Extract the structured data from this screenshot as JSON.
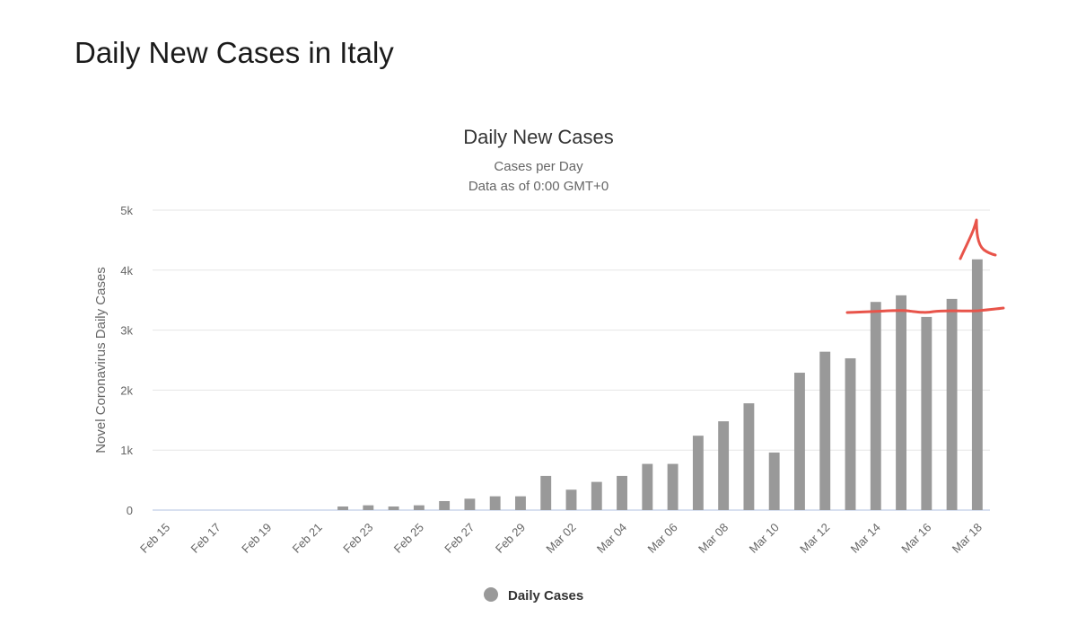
{
  "page": {
    "title": "Daily New Cases in Italy"
  },
  "colors": {
    "bar": "#999999",
    "grid": "#e6e6e6",
    "baseline": "#ccd6eb",
    "annotation": "#e8544a"
  },
  "chart_data": {
    "type": "bar",
    "title": "Daily New Cases",
    "subtitle": [
      "Cases per Day",
      "Data as of 0:00 GMT+0"
    ],
    "ylabel": "Novel Coronavirus Daily Cases",
    "xlabel": "",
    "ylim": [
      0,
      5000
    ],
    "yticks": [
      0,
      1000,
      2000,
      3000,
      4000,
      5000
    ],
    "ytick_labels": [
      "0",
      "1k",
      "2k",
      "3k",
      "4k",
      "5k"
    ],
    "grid": true,
    "legend": {
      "position": "bottom-center",
      "entries": [
        "Daily Cases"
      ]
    },
    "categories": [
      "Feb 15",
      "Feb 16",
      "Feb 17",
      "Feb 18",
      "Feb 19",
      "Feb 20",
      "Feb 21",
      "Feb 22",
      "Feb 23",
      "Feb 24",
      "Feb 25",
      "Feb 26",
      "Feb 27",
      "Feb 28",
      "Feb 29",
      "Mar 01",
      "Mar 02",
      "Mar 03",
      "Mar 04",
      "Mar 05",
      "Mar 06",
      "Mar 07",
      "Mar 08",
      "Mar 09",
      "Mar 10",
      "Mar 11",
      "Mar 12",
      "Mar 13",
      "Mar 14",
      "Mar 15",
      "Mar 16",
      "Mar 17",
      "Mar 18"
    ],
    "xtick_labels": [
      "Feb 15",
      "Feb 17",
      "Feb 19",
      "Feb 21",
      "Feb 23",
      "Feb 25",
      "Feb 27",
      "Feb 29",
      "Mar 02",
      "Mar 04",
      "Mar 06",
      "Mar 08",
      "Mar 10",
      "Mar 12",
      "Mar 14",
      "Mar 16",
      "Mar 18"
    ],
    "series": [
      {
        "name": "Daily Cases",
        "values": [
          0,
          0,
          0,
          0,
          0,
          0,
          0,
          60,
          80,
          60,
          80,
          150,
          190,
          230,
          230,
          570,
          340,
          470,
          570,
          770,
          770,
          1240,
          1480,
          1780,
          960,
          2290,
          2640,
          2530,
          3470,
          3580,
          3220,
          3520,
          4180
        ]
      }
    ]
  }
}
